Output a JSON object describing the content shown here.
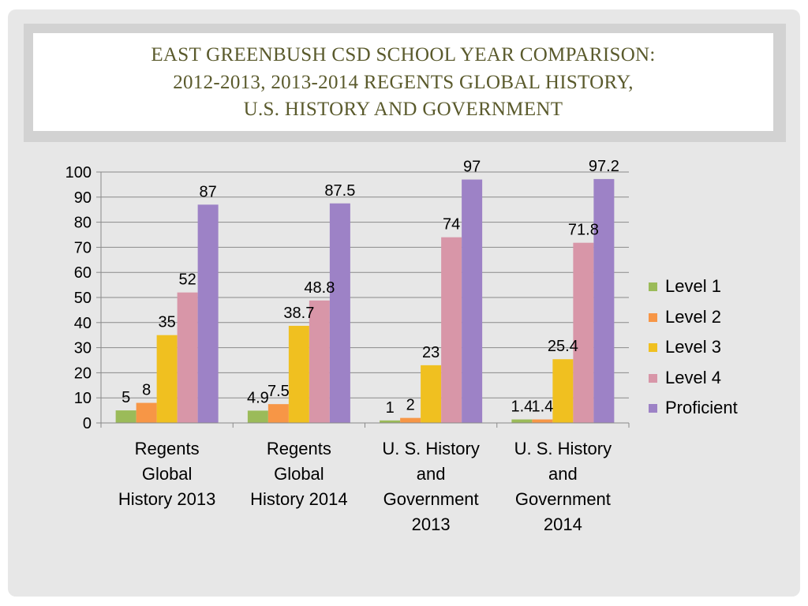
{
  "slide": {
    "title_lines": [
      "EAST GREENBUSH CSD SCHOOL YEAR COMPARISON:",
      "2012-2013, 2013-2014 REGENTS GLOBAL HISTORY,",
      "U.S. HISTORY AND GOVERNMENT"
    ]
  },
  "chart_data": {
    "type": "bar",
    "title": "EAST GREENBUSH CSD SCHOOL YEAR COMPARISON: 2012-2013, 2013-2014 REGENTS GLOBAL HISTORY, U.S. HISTORY AND GOVERNMENT",
    "categories": [
      "Regents Global History 2013",
      "Regents Global History 2014",
      "U. S. History and Government 2013",
      "U. S. History and Government 2014"
    ],
    "category_lines": [
      [
        "Regents",
        "Global",
        "History 2013"
      ],
      [
        "Regents",
        "Global",
        "History 2014"
      ],
      [
        "U. S. History",
        "and",
        "Government",
        "2013"
      ],
      [
        "U. S. History",
        "and",
        "Government",
        "2014"
      ]
    ],
    "series": [
      {
        "name": "Level 1",
        "color": "#9bbb59",
        "values": [
          5,
          4.9,
          1,
          1.4
        ]
      },
      {
        "name": "Level 2",
        "color": "#f79646",
        "values": [
          8,
          7.5,
          2,
          1.4
        ]
      },
      {
        "name": "Level 3",
        "color": "#f0c020",
        "values": [
          35,
          38.7,
          23,
          25.4
        ]
      },
      {
        "name": "Level 4",
        "color": "#d896a8",
        "values": [
          52,
          48.8,
          74,
          71.8
        ]
      },
      {
        "name": "Proficient",
        "color": "#9d82c6",
        "values": [
          87,
          87.5,
          97,
          97.2
        ]
      }
    ],
    "ylim": [
      0,
      100
    ],
    "yticks": [
      0,
      10,
      20,
      30,
      40,
      50,
      60,
      70,
      80,
      90,
      100
    ],
    "grid": true,
    "legend": "right",
    "data_labels": true
  }
}
